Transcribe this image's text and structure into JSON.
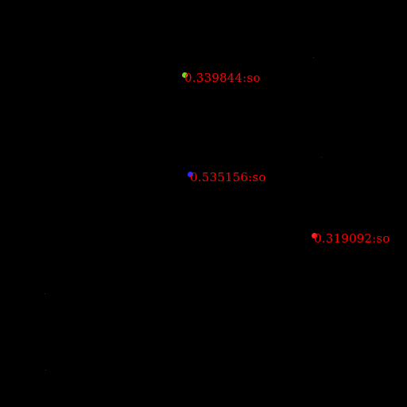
{
  "detections": [
    {
      "label": "0.339844:so",
      "dot_color": "#7ED321",
      "label_color": "#FF0000"
    },
    {
      "label": "0.535156:so",
      "dot_color": "#2B2BFF",
      "label_color": "#FF0000"
    },
    {
      "label": "0.319092:so",
      "dot_color": "#FF2020",
      "label_color": "#FF0000"
    }
  ],
  "colors": {
    "background": "#000000"
  }
}
